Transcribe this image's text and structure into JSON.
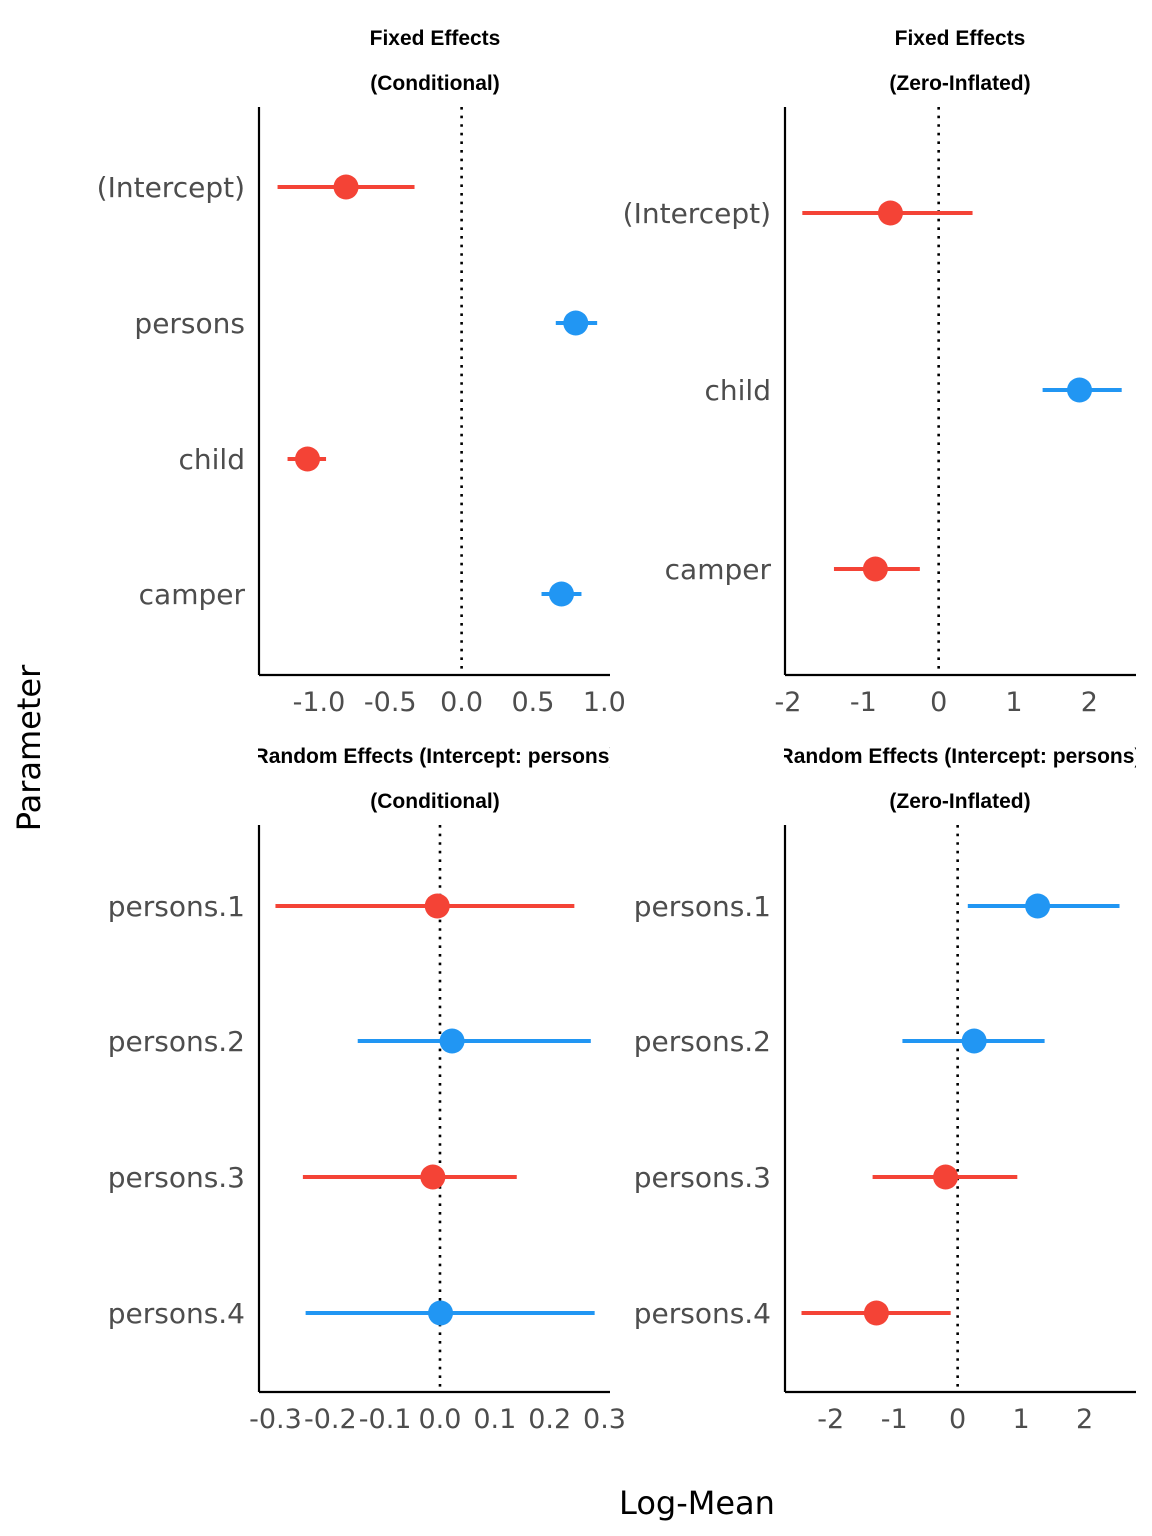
{
  "chart_data": {
    "type": "forest",
    "xlabel": "Log-Mean",
    "ylabel": "Parameter",
    "colors": {
      "negative": "#f44336",
      "positive": "#2196f3",
      "reference_line": "#000000"
    },
    "panels": [
      {
        "title_line1": "Fixed Effects",
        "title_line2": "(Conditional)",
        "xlim": [
          -1.42,
          1.04
        ],
        "ticks": [
          -1.0,
          -0.5,
          0.0,
          0.5,
          1.0
        ],
        "tick_labels": [
          "-1.0",
          "-0.5",
          "0.0",
          "0.5",
          "1.0"
        ],
        "parameters": [
          {
            "name": "(Intercept)",
            "estimate": -0.81,
            "ci_low": -1.29,
            "ci_high": -0.33,
            "sign": "negative"
          },
          {
            "name": "persons",
            "estimate": 0.8,
            "ci_low": 0.66,
            "ci_high": 0.95,
            "sign": "positive"
          },
          {
            "name": "child",
            "estimate": -1.08,
            "ci_low": -1.22,
            "ci_high": -0.95,
            "sign": "negative"
          },
          {
            "name": "camper",
            "estimate": 0.7,
            "ci_low": 0.56,
            "ci_high": 0.84,
            "sign": "positive"
          }
        ]
      },
      {
        "title_line1": "Fixed Effects",
        "title_line2": "(Zero-Inflated)",
        "xlim": [
          -2.04,
          2.62
        ],
        "ticks": [
          -2,
          -1,
          0,
          1,
          2
        ],
        "tick_labels": [
          "-2",
          "-1",
          "0",
          "1",
          "2"
        ],
        "parameters": [
          {
            "name": "(Intercept)",
            "estimate": -0.64,
            "ci_low": -1.81,
            "ci_high": 0.45,
            "sign": "negative"
          },
          {
            "name": "child",
            "estimate": 1.87,
            "ci_low": 1.38,
            "ci_high": 2.43,
            "sign": "positive"
          },
          {
            "name": "camper",
            "estimate": -0.84,
            "ci_low": -1.39,
            "ci_high": -0.25,
            "sign": "negative"
          }
        ]
      },
      {
        "title_line1": "Random Effects (Intercept: persons)",
        "title_line2": "(Conditional)",
        "xlim": [
          -0.33,
          0.31
        ],
        "ticks": [
          -0.3,
          -0.2,
          -0.1,
          0.0,
          0.1,
          0.2,
          0.3
        ],
        "tick_labels": [
          "-0.3",
          "-0.2",
          "-0.1",
          "0.0",
          "0.1",
          "0.2",
          "0.3"
        ],
        "parameters": [
          {
            "name": "persons.1",
            "estimate": -0.005,
            "ci_low": -0.3,
            "ci_high": 0.245,
            "sign": "negative"
          },
          {
            "name": "persons.2",
            "estimate": 0.022,
            "ci_low": -0.15,
            "ci_high": 0.275,
            "sign": "positive"
          },
          {
            "name": "persons.3",
            "estimate": -0.013,
            "ci_low": -0.25,
            "ci_high": 0.14,
            "sign": "negative"
          },
          {
            "name": "persons.4",
            "estimate": 0.001,
            "ci_low": -0.245,
            "ci_high": 0.282,
            "sign": "positive"
          }
        ]
      },
      {
        "title_line1": "Random Effects (Intercept: persons)",
        "title_line2": "(Zero-Inflated)",
        "xlim": [
          -2.72,
          2.81
        ],
        "ticks": [
          -2,
          -1,
          0,
          1,
          2
        ],
        "tick_labels": [
          "-2",
          "-1",
          "0",
          "1",
          "2"
        ],
        "parameters": [
          {
            "name": "persons.1",
            "estimate": 1.26,
            "ci_low": 0.16,
            "ci_high": 2.55,
            "sign": "positive"
          },
          {
            "name": "persons.2",
            "estimate": 0.26,
            "ci_low": -0.87,
            "ci_high": 1.37,
            "sign": "positive"
          },
          {
            "name": "persons.3",
            "estimate": -0.19,
            "ci_low": -1.34,
            "ci_high": 0.94,
            "sign": "negative"
          },
          {
            "name": "persons.4",
            "estimate": -1.28,
            "ci_low": -2.46,
            "ci_high": -0.11,
            "sign": "negative"
          }
        ]
      }
    ]
  }
}
